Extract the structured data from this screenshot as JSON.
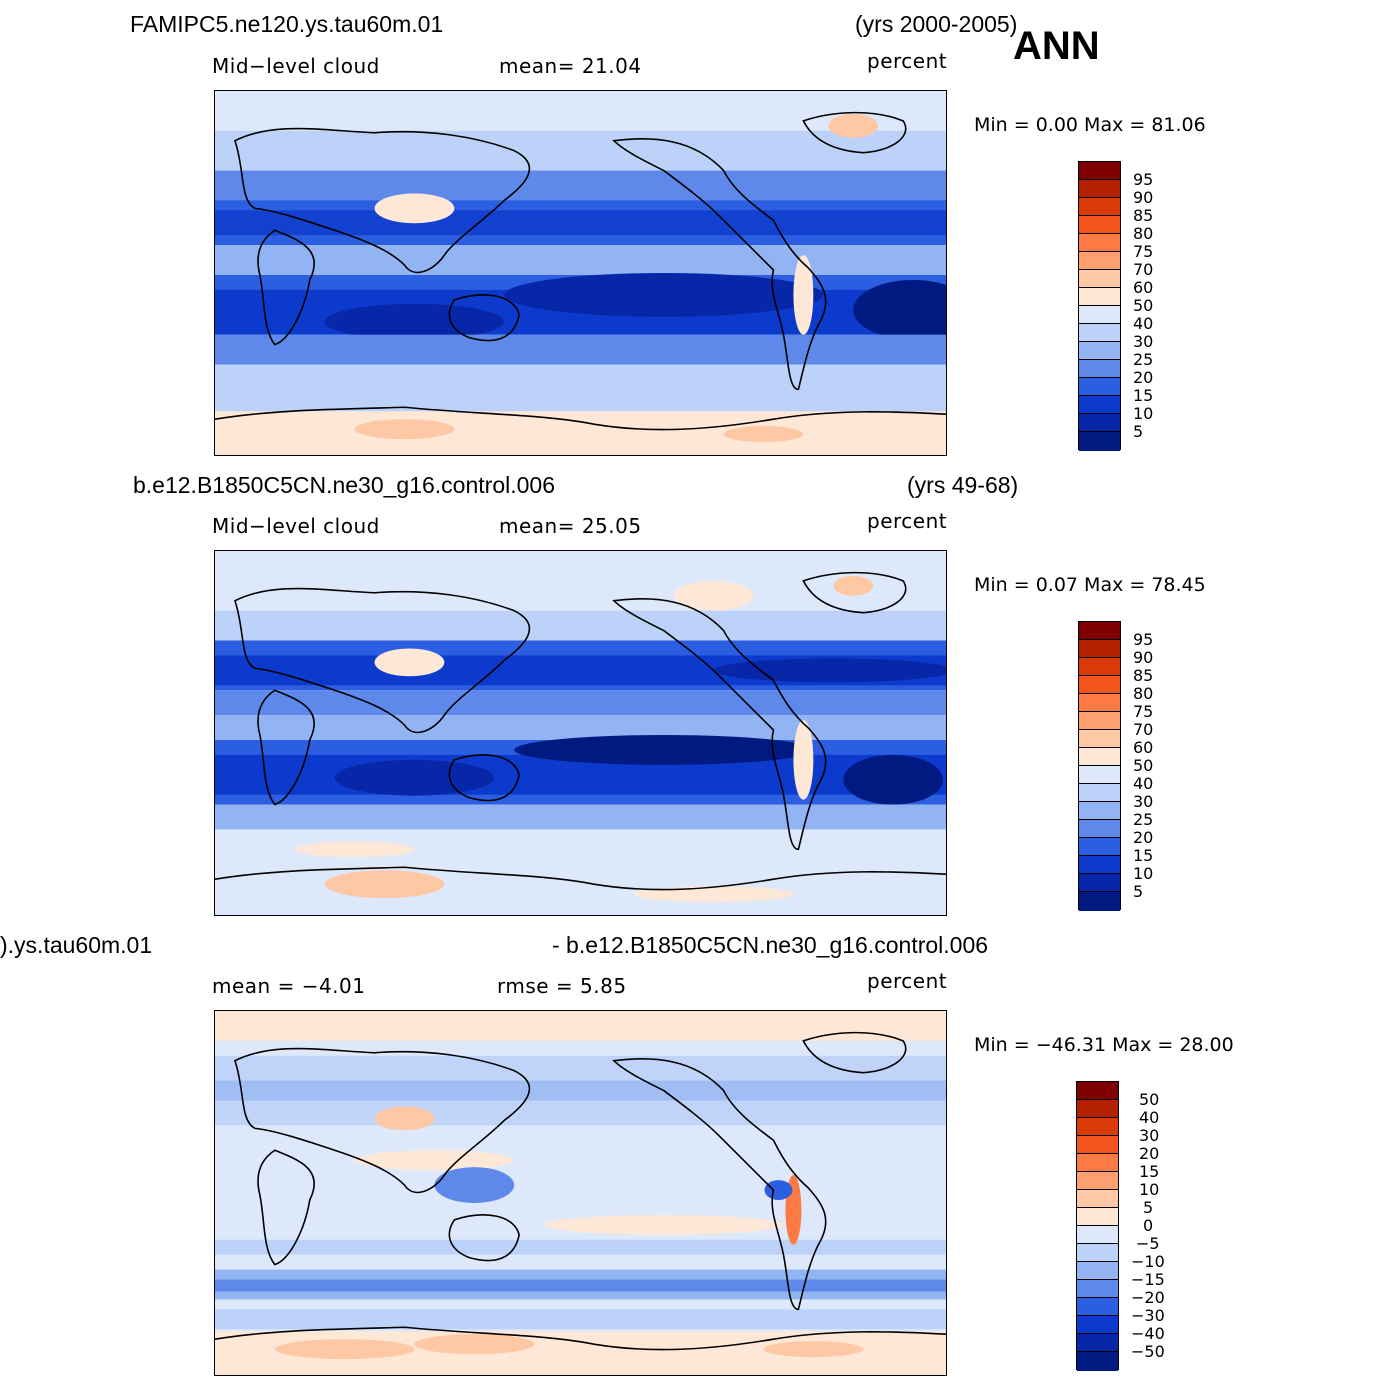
{
  "season": "ANN",
  "panels": [
    {
      "case_left": "FAMIPC5.ne120.ys.tau60m.01",
      "case_right": "(yrs 2000-2005)",
      "sub_left": "Mid−level  cloud",
      "sub_mid": "mean=   21.04",
      "units": "percent",
      "minmax": "Min  =     0.00  Max  =    81.06",
      "colorbar_ticks": [
        "95",
        "90",
        "85",
        "80",
        "75",
        "70",
        "60",
        "50",
        "40",
        "30",
        "25",
        "20",
        "15",
        "10",
        "5"
      ]
    },
    {
      "case_left": "b.e12.B1850C5CN.ne30_g16.control.006",
      "case_right": "(yrs 49-68)",
      "sub_left": "Mid−level  cloud",
      "sub_mid": "mean=   25.05",
      "units": "percent",
      "minmax": "Min  =     0.07  Max  =    78.45",
      "colorbar_ticks": [
        "95",
        "90",
        "85",
        "80",
        "75",
        "70",
        "60",
        "50",
        "40",
        "30",
        "25",
        "20",
        "15",
        "10",
        "5"
      ]
    },
    {
      "case_left": ").ys.tau60m.01",
      "case_right": "- b.e12.B1850C5CN.ne30_g16.control.006",
      "sub_left": "mean  =    −4.01",
      "sub_mid": "rmse  =      5.85",
      "units": "percent",
      "minmax": "Min  = −46.31  Max  =    28.00",
      "colorbar_ticks": [
        "50",
        "40",
        "30",
        "20",
        "15",
        "10",
        "5",
        "0",
        "−5",
        "−10",
        "−15",
        "−20",
        "−30",
        "−40",
        "−50"
      ]
    }
  ],
  "colors": {
    "abs_scale": [
      "#7f0000",
      "#b22000",
      "#d83a08",
      "#f2551c",
      "#fd7a44",
      "#fda070",
      "#fdc8a3",
      "#fde7d6",
      "#dde9fb",
      "#bcd2f8",
      "#93b4f2",
      "#5e89ea",
      "#2c5ee2",
      "#0c3acc",
      "#0727a8",
      "#001a82"
    ],
    "diff_scale": [
      "#7f0000",
      "#b22000",
      "#d83a08",
      "#f2551c",
      "#fd7a44",
      "#fda070",
      "#fdc8a3",
      "#fde7d6",
      "#dde9fb",
      "#bcd2f8",
      "#93b4f2",
      "#5e89ea",
      "#2c5ee2",
      "#0c3acc",
      "#0727a8",
      "#001a82"
    ]
  }
}
